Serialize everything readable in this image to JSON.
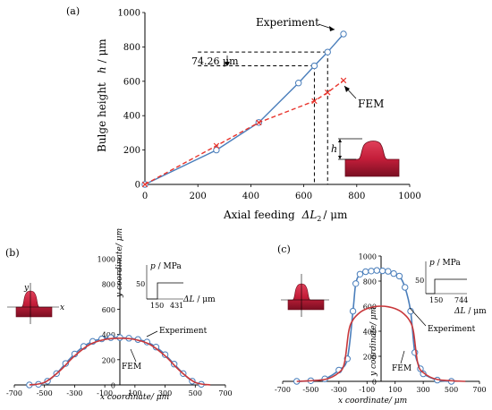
{
  "chart_data": [
    {
      "panel": "(a)",
      "type": "line",
      "xlabel": "Axial feeding",
      "xlabel_symbol": "ΔL",
      "xlabel_subscript": "2",
      "xlabel_unit": "/ μm",
      "ylabel": "Bulge height",
      "ylabel_symbol": "h",
      "ylabel_unit": "/ μm",
      "xlim": [
        0,
        1000
      ],
      "ylim": [
        0,
        1000
      ],
      "xticks": [
        0,
        200,
        400,
        600,
        800,
        1000
      ],
      "yticks": [
        0,
        200,
        400,
        600,
        800,
        1000
      ],
      "series": [
        {
          "name": "Experiment",
          "color": "#4a7ebb",
          "marker": "circle",
          "x": [
            0,
            270,
            430,
            580,
            640,
            690,
            750
          ],
          "y": [
            0,
            200,
            360,
            590,
            690,
            770,
            875
          ]
        },
        {
          "name": "FEM",
          "color": "#e8342c",
          "marker": "x",
          "dashed": true,
          "x": [
            0,
            270,
            430,
            640,
            690,
            750
          ],
          "y": [
            0,
            225,
            360,
            485,
            535,
            605
          ]
        }
      ],
      "annotations": {
        "dimension_label": "74.26 μm",
        "dim_top": 770,
        "dim_bottom": 690,
        "inset_label": "h"
      }
    },
    {
      "panel": "(b)",
      "type": "line",
      "xlabel": "x coordinate/ μm",
      "ylabel": "y coordinate/ μm",
      "xlim": [
        -700,
        700
      ],
      "ylim": [
        0,
        1000
      ],
      "xticks": [
        -700,
        -500,
        -300,
        -100,
        100,
        300,
        500,
        700
      ],
      "yticks": [
        0,
        200,
        400,
        600,
        800,
        1000
      ],
      "series": [
        {
          "name": "Experiment",
          "color": "#4a7ebb",
          "marker": "circle",
          "x": [
            -600,
            -540,
            -480,
            -420,
            -360,
            -300,
            -240,
            -180,
            -120,
            -60,
            0,
            60,
            120,
            180,
            240,
            300,
            360,
            420,
            480,
            540
          ],
          "y": [
            0,
            5,
            30,
            90,
            170,
            245,
            305,
            345,
            365,
            375,
            375,
            370,
            360,
            340,
            300,
            240,
            165,
            90,
            30,
            5
          ]
        },
        {
          "name": "FEM",
          "color": "#c8373a",
          "x": [
            -600,
            -500,
            -400,
            -300,
            -200,
            -100,
            0,
            100,
            200,
            300,
            400,
            500,
            600
          ],
          "y": [
            0,
            20,
            110,
            230,
            320,
            360,
            370,
            360,
            320,
            230,
            110,
            20,
            0
          ]
        }
      ],
      "inset_load": {
        "ylabel": "p / MPa",
        "level": "50",
        "t1": "150",
        "t2": "431",
        "xlabel": "ΔL / μm"
      }
    },
    {
      "panel": "(c)",
      "type": "line",
      "xlabel": "x coordinate/ μm",
      "ylabel": "y coordinate/ μm",
      "xlim": [
        -700,
        700
      ],
      "ylim": [
        0,
        1000
      ],
      "xticks": [
        -700,
        -500,
        -300,
        -100,
        100,
        300,
        500,
        700
      ],
      "yticks": [
        0,
        200,
        400,
        600,
        800,
        1000
      ],
      "series": [
        {
          "name": "Experiment",
          "color": "#4a7ebb",
          "marker": "circle",
          "x": [
            -600,
            -500,
            -400,
            -300,
            -240,
            -200,
            -180,
            -150,
            -110,
            -70,
            -30,
            10,
            50,
            90,
            130,
            170,
            210,
            240,
            280,
            300,
            400,
            500
          ],
          "y": [
            0,
            5,
            20,
            90,
            180,
            560,
            780,
            855,
            875,
            880,
            885,
            882,
            878,
            860,
            840,
            750,
            560,
            230,
            100,
            60,
            10,
            0
          ]
        },
        {
          "name": "FEM",
          "color": "#c8373a",
          "x": [
            -600,
            -400,
            -300,
            -260,
            -230,
            -200,
            -150,
            -100,
            -50,
            0,
            50,
            100,
            150,
            200,
            230,
            260,
            300,
            400,
            600
          ],
          "y": [
            0,
            15,
            70,
            150,
            400,
            490,
            550,
            580,
            595,
            600,
            595,
            580,
            550,
            490,
            400,
            150,
            70,
            15,
            0
          ]
        }
      ],
      "inset_load": {
        "ylabel": "p / MPa",
        "level": "50",
        "t1": "150",
        "t2": "744",
        "xlabel": "ΔL / μm"
      }
    }
  ]
}
